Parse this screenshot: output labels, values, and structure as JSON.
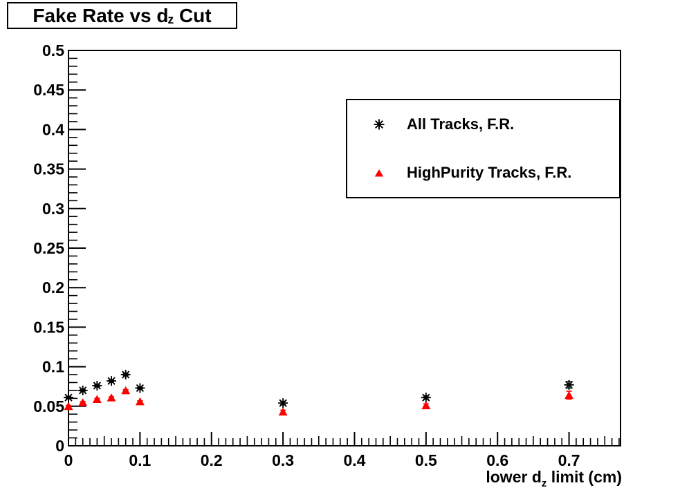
{
  "page": {
    "background_color": "#ffffff",
    "foreground_color": "#000000"
  },
  "title_box": {
    "part1": "Fake Rate vs d",
    "sub": "z",
    "part2": " Cut"
  },
  "legend": {
    "position": "top-right",
    "entries": [
      {
        "label": "All Tracks, F.R.",
        "marker": "eight-ray-star",
        "color": "#000000"
      },
      {
        "label": "HighPurity Tracks, F.R.",
        "marker": "filled-triangle-up",
        "color": "#ff0000"
      }
    ]
  },
  "chart_data": {
    "type": "scatter",
    "title": "Fake Rate vs d_z Cut",
    "xlabel": "lower d_z limit (cm)",
    "xlabel_parts": {
      "part1": "lower d",
      "sub": "z",
      "part2": " limit (cm)"
    },
    "ylabel": "",
    "xlim": [
      0,
      0.772
    ],
    "ylim": [
      0,
      0.5
    ],
    "grid": false,
    "x_major_ticks": [
      0,
      0.1,
      0.2,
      0.3,
      0.4,
      0.5,
      0.6,
      0.7
    ],
    "x_major_labels": [
      "0",
      "0.1",
      "0.2",
      "0.3",
      "0.4",
      "0.5",
      "0.6",
      "0.7"
    ],
    "x_minor_step": 0.01,
    "y_major_ticks": [
      0,
      0.05,
      0.1,
      0.15,
      0.2,
      0.25,
      0.3,
      0.35,
      0.4,
      0.45,
      0.5
    ],
    "y_major_labels": [
      "0",
      "0.05",
      "0.1",
      "0.15",
      "0.2",
      "0.25",
      "0.3",
      "0.35",
      "0.4",
      "0.45",
      "0.5"
    ],
    "y_minor_step": 0.01,
    "series": [
      {
        "name": "All Tracks, F.R.",
        "marker": "eight-ray-star",
        "color": "#000000",
        "x": [
          0.0,
          0.02,
          0.04,
          0.06,
          0.08,
          0.1,
          0.3,
          0.5,
          0.7
        ],
        "y": [
          0.061,
          0.07,
          0.076,
          0.082,
          0.09,
          0.073,
          0.054,
          0.061,
          0.077
        ],
        "yerr": [
          0.001,
          0.001,
          0.001,
          0.001,
          0.001,
          0.001,
          0.002,
          0.002,
          0.004
        ]
      },
      {
        "name": "HighPurity Tracks, F.R.",
        "marker": "filled-triangle-up",
        "color": "#ff0000",
        "x": [
          0.0,
          0.02,
          0.04,
          0.06,
          0.08,
          0.1,
          0.3,
          0.5,
          0.7
        ],
        "y": [
          0.05,
          0.055,
          0.059,
          0.061,
          0.07,
          0.056,
          0.043,
          0.051,
          0.064
        ],
        "yerr": [
          0.001,
          0.001,
          0.001,
          0.001,
          0.001,
          0.001,
          0.002,
          0.002,
          0.005
        ]
      }
    ]
  }
}
